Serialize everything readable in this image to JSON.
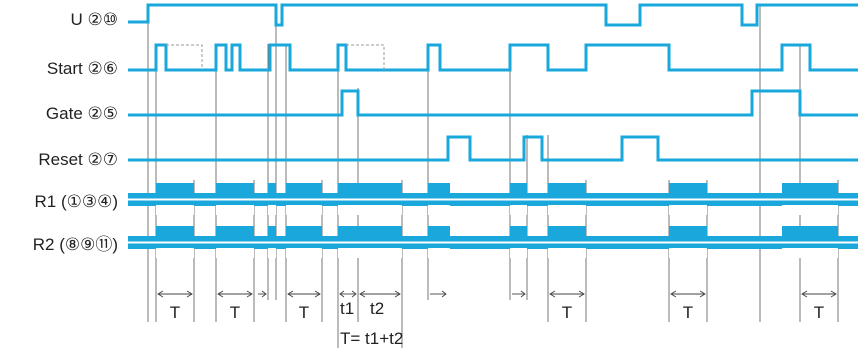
{
  "colors": {
    "signal": "#1aa7dc",
    "text": "#222222",
    "guide": "#555555"
  },
  "signals": [
    {
      "id": "u",
      "name": "U",
      "pins": "②⑩"
    },
    {
      "id": "start",
      "name": "Start",
      "pins": "②⑥"
    },
    {
      "id": "gate",
      "name": "Gate",
      "pins": "②⑤"
    },
    {
      "id": "reset",
      "name": "Reset",
      "pins": "②⑦"
    },
    {
      "id": "r1",
      "name": "R1",
      "pins": "(①③④)"
    },
    {
      "id": "r2",
      "name": "R2",
      "pins": "(⑧⑨⑪)"
    }
  ],
  "timing_labels": {
    "t": "T",
    "t1": "t1",
    "t2": "t2",
    "formula": "T= t1+t2"
  }
}
